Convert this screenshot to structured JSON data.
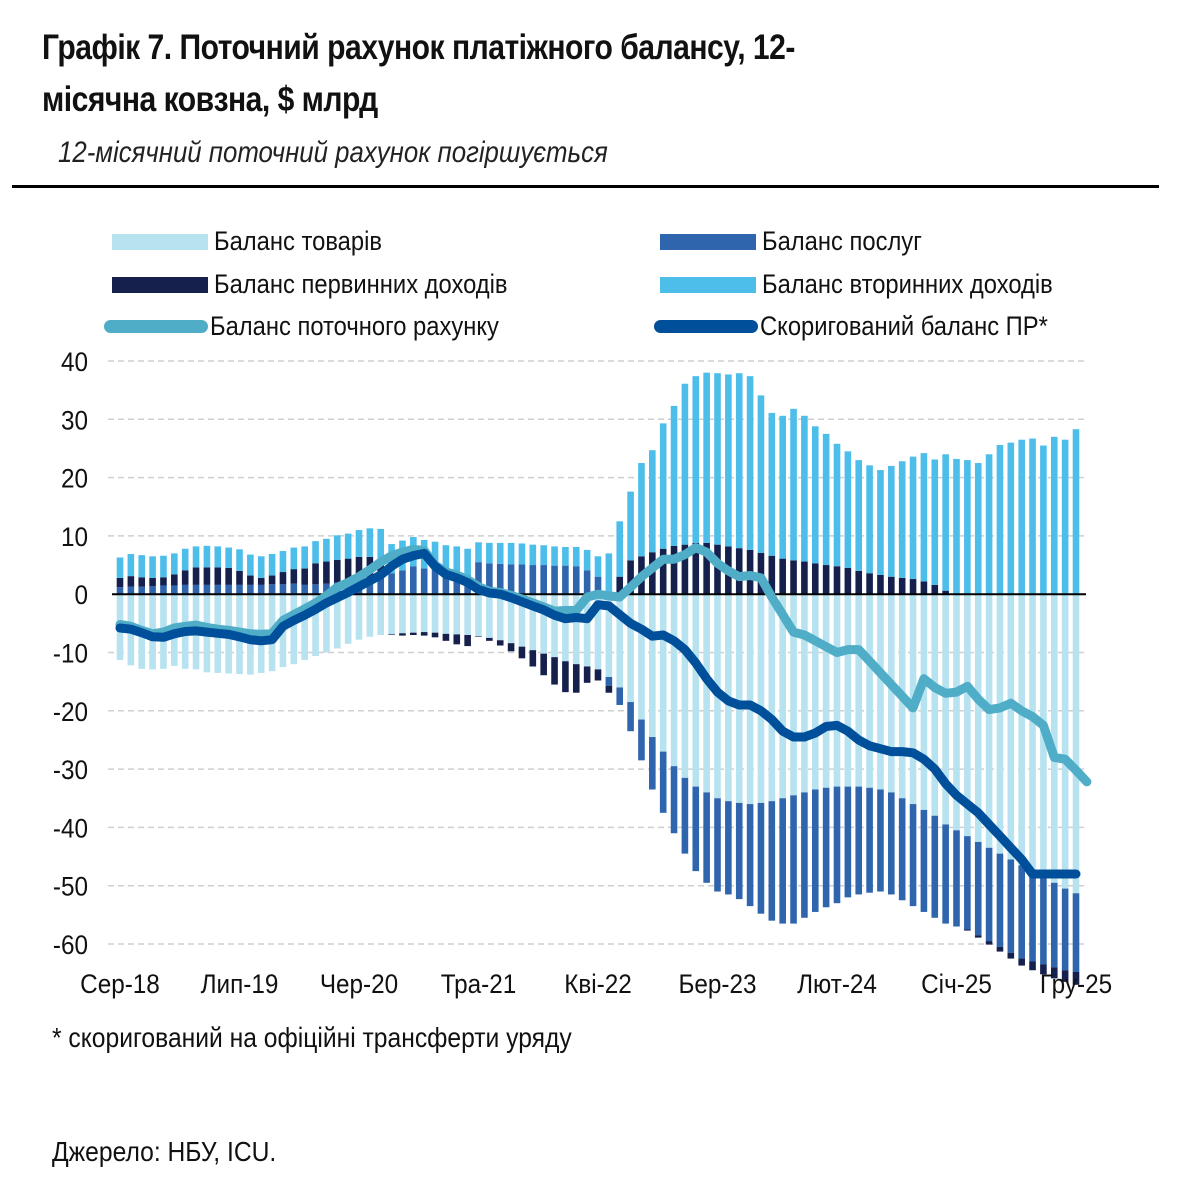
{
  "header": {
    "title": "Графік 7. Поточний рахунок платіжного балансу, 12-місячна ковзна, $ млрд",
    "title_line1": "Графік 7. Поточний рахунок платіжного балансу, 12-",
    "title_line2": "місячна ковзна, $ млрд",
    "subtitle": "12-місячний поточний рахунок погіршується"
  },
  "colors": {
    "goods": "#b7e2ef",
    "services": "#2e65ad",
    "primary_income": "#16204d",
    "secondary_income": "#4dbde9",
    "current_account": "#4fadc7",
    "adjusted_ca": "#004f9a",
    "grid": "#cfcfcf",
    "zero_line": "#000000"
  },
  "footnote": "* скоригований на офіційні трансферти уряду",
  "source": "Джерело: НБУ, ICU.",
  "chart_data": {
    "type": "bar",
    "stacked": true,
    "title": "Графік 7. Поточний рахунок платіжного балансу, 12-місячна ковзна, $ млрд",
    "subtitle": "12-місячний поточний рахунок погіршується",
    "xlabel": "",
    "ylabel": "$ млрд",
    "ylim": [
      -60,
      40
    ],
    "yticks": [
      40,
      30,
      20,
      10,
      0,
      -10,
      -20,
      -30,
      -40,
      -50,
      -60
    ],
    "grid": true,
    "legend_position": "top",
    "x_start": "Сер-18",
    "x_end": "Гру-25",
    "x_frequency": "monthly",
    "x_tick_labels": [
      "Сер-18",
      "Лип-19",
      "Чер-20",
      "Тра-21",
      "Кві-22",
      "Бер-23",
      "Лют-24",
      "Січ-25",
      "Гру-25"
    ],
    "x_tick_indices": [
      0,
      11,
      22,
      33,
      44,
      55,
      66,
      77,
      88
    ],
    "series": [
      {
        "name": "Баланс товарів",
        "kind": "bar",
        "values": [
          -11.3,
          -12.2,
          -12.8,
          -12.9,
          -12.8,
          -12.3,
          -12.8,
          -12.9,
          -13.4,
          -13.5,
          -13.6,
          -13.7,
          -13.8,
          -13.5,
          -13.2,
          -12.5,
          -12.0,
          -11.3,
          -10.6,
          -10.0,
          -9.3,
          -8.5,
          -7.8,
          -7.3,
          -7.0,
          -6.9,
          -6.7,
          -6.6,
          -6.5,
          -6.6,
          -6.8,
          -6.9,
          -7.0,
          -7.2,
          -7.5,
          -7.9,
          -8.4,
          -9.0,
          -9.6,
          -10.2,
          -10.8,
          -11.5,
          -12.0,
          -12.4,
          -12.9,
          -14.2,
          -16.0,
          -18.5,
          -21.5,
          -24.5,
          -27.0,
          -29.5,
          -31.5,
          -33.0,
          -34.0,
          -35.0,
          -35.5,
          -35.8,
          -36.0,
          -35.8,
          -35.5,
          -35.0,
          -34.5,
          -34.0,
          -33.5,
          -33.2,
          -33.0,
          -33.0,
          -33.0,
          -33.2,
          -33.5,
          -34.0,
          -35.0,
          -36.0,
          -37.0,
          -38.0,
          -39.5,
          -40.5,
          -41.5,
          -42.5,
          -43.5,
          -44.5,
          -45.5,
          -46.5,
          -47.5,
          -48.5,
          -49.5,
          -50.5,
          -51.3
        ]
      },
      {
        "name": "Баланс послуг",
        "kind": "bar",
        "values": [
          1.2,
          1.3,
          1.3,
          1.4,
          1.5,
          1.5,
          1.6,
          1.6,
          1.6,
          1.6,
          1.6,
          1.6,
          1.6,
          1.6,
          1.7,
          1.7,
          1.8,
          1.6,
          1.7,
          1.8,
          2.0,
          2.3,
          2.6,
          2.9,
          3.1,
          3.6,
          4.1,
          4.8,
          4.4,
          4.2,
          3.9,
          3.6,
          3.2,
          5.5,
          5.3,
          5.2,
          5.1,
          5.1,
          5.0,
          5.0,
          4.9,
          4.9,
          4.8,
          4.1,
          3.0,
          -1.5,
          -3.0,
          -5.0,
          -7.0,
          -9.0,
          -10.5,
          -11.5,
          -13.0,
          -14.5,
          -15.5,
          -16.0,
          -16.0,
          -16.5,
          -17.5,
          -19.0,
          -20.5,
          -21.5,
          -22.0,
          -21.5,
          -21.0,
          -20.5,
          -20.0,
          -19.0,
          -18.5,
          -18.0,
          -17.5,
          -17.5,
          -17.5,
          -17.5,
          -17.5,
          -17.5,
          -17.0,
          -16.5,
          -16.0,
          -16.0,
          -16.0,
          -16.0,
          -16.0,
          -16.0,
          -15.5,
          -15.0,
          -14.5,
          -14.0,
          -13.5
        ]
      },
      {
        "name": "Баланс первинних доходів",
        "kind": "bar",
        "values": [
          1.6,
          1.8,
          1.6,
          1.4,
          1.4,
          1.9,
          2.5,
          3.0,
          3.0,
          3.0,
          2.9,
          2.4,
          1.6,
          1.2,
          1.5,
          2.1,
          2.5,
          2.8,
          3.6,
          3.8,
          3.9,
          3.8,
          3.8,
          3.5,
          2.9,
          -0.1,
          -0.4,
          -0.4,
          -0.6,
          -0.8,
          -1.2,
          -1.7,
          -1.9,
          -0.1,
          -0.5,
          -0.9,
          -1.4,
          -2.0,
          -2.8,
          -3.7,
          -4.7,
          -5.3,
          -4.9,
          -2.8,
          -1.9,
          -1.2,
          3.0,
          5.8,
          6.5,
          7.2,
          7.8,
          8.3,
          8.5,
          8.8,
          8.8,
          8.5,
          8.2,
          7.9,
          7.6,
          7.1,
          6.6,
          6.1,
          5.8,
          5.6,
          5.3,
          5.0,
          4.8,
          4.5,
          4.0,
          3.6,
          3.3,
          3.0,
          2.8,
          2.6,
          2.2,
          1.6,
          0.6,
          0.0,
          -0.2,
          -0.4,
          -0.6,
          -0.8,
          -1.0,
          -1.2,
          -1.5,
          -1.7,
          -1.9,
          -2.0,
          -2.2
        ]
      },
      {
        "name": "Баланс вторинних доходів",
        "kind": "bar",
        "values": [
          3.5,
          3.8,
          3.8,
          3.7,
          3.7,
          3.6,
          3.7,
          3.6,
          3.7,
          3.6,
          3.5,
          3.7,
          3.6,
          3.7,
          3.7,
          3.6,
          3.7,
          3.8,
          3.8,
          3.9,
          4.2,
          4.3,
          4.6,
          4.9,
          5.2,
          5.0,
          5.1,
          5.0,
          4.9,
          4.8,
          4.5,
          4.6,
          4.6,
          3.4,
          3.5,
          3.6,
          3.7,
          3.6,
          3.5,
          3.4,
          3.3,
          3.2,
          3.3,
          3.5,
          3.5,
          7.0,
          9.5,
          11.8,
          16.0,
          17.5,
          21.5,
          24.0,
          27.6,
          28.6,
          29.2,
          29.4,
          29.5,
          30.0,
          29.8,
          27.0,
          24.5,
          24.5,
          26.0,
          25.0,
          23.5,
          22.5,
          21.0,
          20.0,
          19.0,
          18.5,
          18.0,
          19.0,
          20.0,
          21.0,
          22.0,
          21.5,
          23.4,
          23.2,
          23.0,
          22.5,
          24.0,
          25.6,
          26.0,
          26.5,
          26.7,
          25.5,
          27.0,
          26.5,
          28.3
        ]
      },
      {
        "name": "Баланс поточного рахунку",
        "kind": "line",
        "values": [
          -5.2,
          -5.5,
          -6.2,
          -6.8,
          -6.5,
          -5.8,
          -5.5,
          -5.3,
          -5.7,
          -6.0,
          -6.2,
          -6.5,
          -6.8,
          -6.9,
          -6.7,
          -4.5,
          -3.5,
          -2.5,
          -1.5,
          -0.3,
          1.2,
          2.0,
          3.0,
          4.2,
          5.5,
          6.6,
          7.2,
          7.7,
          7.5,
          5.0,
          3.8,
          3.3,
          2.5,
          1.3,
          0.5,
          0.3,
          -0.2,
          -0.8,
          -1.5,
          -2.2,
          -2.9,
          -2.8,
          -2.8,
          -0.5,
          0.0,
          -0.3,
          -0.5,
          1.2,
          3.0,
          4.5,
          6.0,
          6.0,
          6.8,
          8.0,
          7.2,
          5.3,
          4.0,
          3.0,
          3.2,
          2.8,
          -0.5,
          -3.5,
          -6.5,
          -7.0,
          -8.0,
          -9.0,
          -10.0,
          -9.5,
          -9.5,
          -11.5,
          -13.5,
          -15.5,
          -17.5,
          -19.5,
          -14.5,
          -16.0,
          -17.0,
          -16.8,
          -15.8,
          -18.0,
          -19.8,
          -19.5,
          -18.7,
          -20.0,
          -21.0,
          -22.5,
          -28.0,
          -28.3,
          -30.2,
          -32.2
        ]
      },
      {
        "name": "Скоригований баланс ПР*",
        "kind": "line",
        "values": [
          -5.8,
          -6.0,
          -6.6,
          -7.3,
          -7.4,
          -6.8,
          -6.4,
          -6.3,
          -6.5,
          -6.7,
          -6.9,
          -7.3,
          -7.8,
          -8.0,
          -7.8,
          -5.5,
          -4.5,
          -3.6,
          -2.6,
          -1.5,
          -0.6,
          0.3,
          1.3,
          2.3,
          3.3,
          4.8,
          6.0,
          6.6,
          7.0,
          4.8,
          3.4,
          2.8,
          2.0,
          0.8,
          0.2,
          0.0,
          -0.6,
          -1.3,
          -2.0,
          -2.7,
          -3.6,
          -4.2,
          -4.0,
          -4.2,
          -1.8,
          -2.0,
          -3.5,
          -5.0,
          -6.0,
          -7.2,
          -7.0,
          -8.0,
          -9.5,
          -11.8,
          -14.5,
          -16.8,
          -18.3,
          -19.0,
          -19.0,
          -20.0,
          -21.5,
          -23.5,
          -24.5,
          -24.5,
          -23.8,
          -22.7,
          -22.5,
          -23.5,
          -25.0,
          -26.0,
          -26.5,
          -27.0,
          -27.0,
          -27.2,
          -28.3,
          -30.0,
          -32.5,
          -34.5,
          -36.0,
          -37.5,
          -39.5,
          -41.5,
          -43.5,
          -45.5,
          -48.0,
          -48.0,
          -48.0,
          -48.0,
          -48.0
        ]
      }
    ]
  },
  "legend": [
    {
      "label": "Баланс товарів",
      "kind": "bar",
      "color_key": "goods"
    },
    {
      "label": "Баланс послуг",
      "kind": "bar",
      "color_key": "services"
    },
    {
      "label": "Баланс первинних доходів",
      "kind": "bar",
      "color_key": "primary_income"
    },
    {
      "label": "Баланс вторинних доходів",
      "kind": "bar",
      "color_key": "secondary_income"
    },
    {
      "label": "Баланс поточного рахунку",
      "kind": "line",
      "color_key": "current_account"
    },
    {
      "label": "Скоригований баланс ПР*",
      "kind": "line",
      "color_key": "adjusted_ca"
    }
  ]
}
